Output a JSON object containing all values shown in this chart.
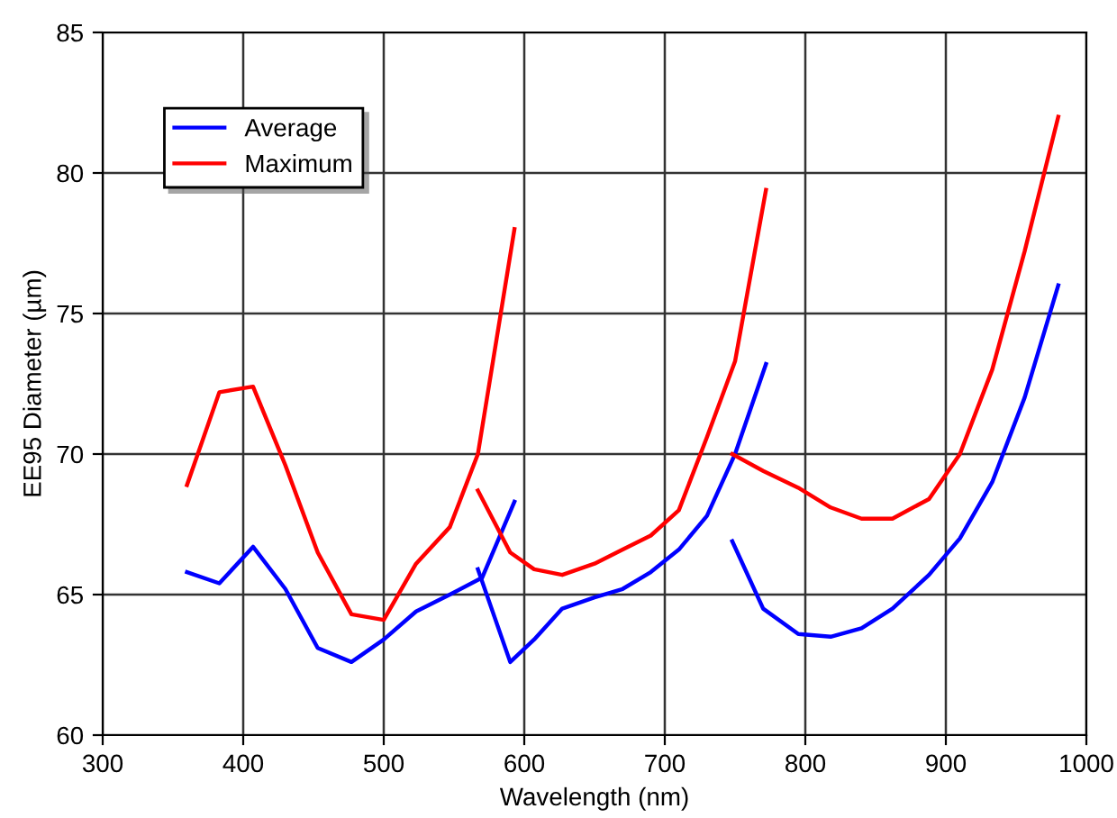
{
  "chart_data": {
    "type": "line",
    "xlabel": "Wavelength (nm)",
    "ylabel": "EE95 Diameter (µm)",
    "xlim": [
      300,
      1000
    ],
    "xticks": [
      300,
      400,
      500,
      600,
      700,
      800,
      900,
      1000
    ],
    "ylim": [
      60,
      85
    ],
    "yticks": [
      60,
      65,
      70,
      75,
      80,
      85
    ],
    "grid": true,
    "legend": "top left",
    "marker": "none",
    "line_style": "solid",
    "series": [
      {
        "name": "Average",
        "color": "#0000ff",
        "x": [
          360,
          383,
          407,
          430,
          453,
          477,
          500,
          523,
          547,
          570,
          593
        ],
        "values": [
          65.8,
          65.4,
          66.7,
          65.2,
          63.1,
          62.6,
          63.4,
          64.4,
          65.0,
          65.6,
          68.3
        ]
      },
      {
        "name": "Maximum",
        "color": "#ff0000",
        "x": [
          360,
          383,
          407,
          430,
          453,
          477,
          500,
          523,
          547,
          567,
          593
        ],
        "values": [
          68.9,
          72.2,
          72.4,
          69.6,
          66.5,
          64.3,
          64.1,
          66.1,
          67.4,
          70.0,
          78.0
        ]
      },
      {
        "color": "#0000ff",
        "x": [
          567,
          590,
          607,
          627,
          650,
          670,
          690,
          710,
          730,
          750,
          772
        ],
        "values": [
          65.9,
          62.6,
          63.4,
          64.5,
          64.9,
          65.2,
          65.8,
          66.6,
          67.8,
          70.0,
          73.2
        ]
      },
      {
        "color": "#ff0000",
        "x": [
          567,
          590,
          607,
          627,
          650,
          670,
          690,
          710,
          730,
          750,
          772
        ],
        "values": [
          68.7,
          66.5,
          65.9,
          65.7,
          66.1,
          66.6,
          67.1,
          68.0,
          70.6,
          73.3,
          79.4
        ]
      },
      {
        "color": "#0000ff",
        "x": [
          748,
          770,
          795,
          818,
          840,
          862,
          888,
          910,
          933,
          956,
          980
        ],
        "values": [
          66.9,
          64.5,
          63.6,
          63.5,
          63.8,
          64.5,
          65.7,
          67.0,
          69.0,
          72.0,
          76.0
        ]
      },
      {
        "color": "#ff0000",
        "x": [
          748,
          770,
          795,
          818,
          840,
          862,
          888,
          910,
          933,
          956,
          980
        ],
        "values": [
          70.0,
          69.4,
          68.8,
          68.1,
          67.7,
          67.7,
          68.4,
          70.0,
          73.0,
          77.2,
          82.0
        ]
      }
    ]
  }
}
